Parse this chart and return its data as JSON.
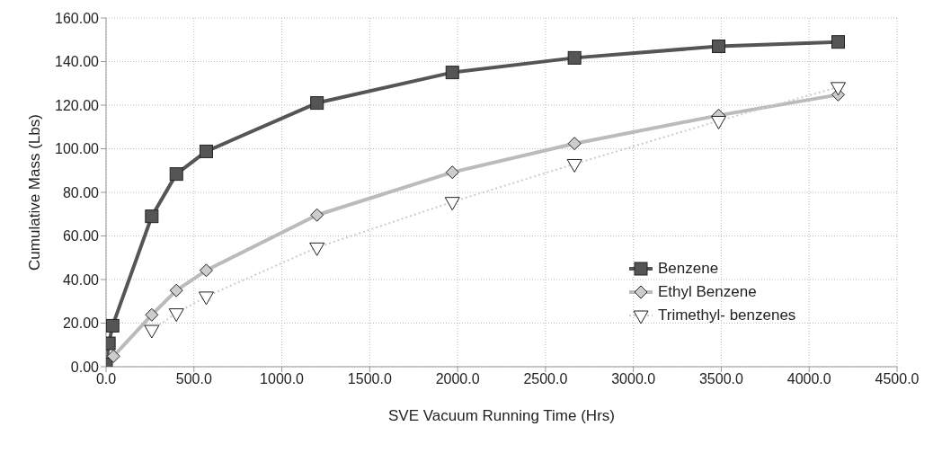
{
  "chart_data": {
    "type": "line",
    "xlabel": "SVE Vacuum Running Time (Hrs)",
    "ylabel": "Cumulative Mass (Lbs)",
    "xlim": [
      0,
      4500
    ],
    "xticks": [
      {
        "value": 0,
        "label": "0.0"
      },
      {
        "value": 500,
        "label": "500.0"
      },
      {
        "value": 1000,
        "label": "1000.0"
      },
      {
        "value": 1500,
        "label": "1500.0"
      },
      {
        "value": 2000,
        "label": "2000.0"
      },
      {
        "value": 2500,
        "label": "2500.0"
      },
      {
        "value": 3000,
        "label": "3000.0"
      },
      {
        "value": 3500,
        "label": "3500.0"
      },
      {
        "value": 4000,
        "label": "4000.0"
      },
      {
        "value": 4500,
        "label": "4500.0"
      }
    ],
    "ylim": [
      0,
      160
    ],
    "yticks": [
      {
        "value": 0,
        "label": "0.00"
      },
      {
        "value": 20,
        "label": "20.00"
      },
      {
        "value": 40,
        "label": "40.00"
      },
      {
        "value": 60,
        "label": "60.00"
      },
      {
        "value": 80,
        "label": "80.00"
      },
      {
        "value": 100,
        "label": "100.00"
      },
      {
        "value": 120,
        "label": "120.00"
      },
      {
        "value": 140,
        "label": "140.00"
      },
      {
        "value": 160,
        "label": "160.00"
      }
    ],
    "grid": true,
    "legend": "bottom right",
    "series": [
      {
        "name": "Benzene",
        "color": "#555555",
        "marker": "square",
        "line_style": "solid",
        "x": [
          0,
          16,
          37,
          260,
          400,
          570,
          1200,
          1970,
          2665,
          3485,
          4165
        ],
        "values": [
          1,
          10.7,
          18.8,
          69,
          88.4,
          98.8,
          121,
          135,
          141.7,
          147,
          149
        ]
      },
      {
        "name": "Ethyl  Benzene",
        "color": "#bbbbbb",
        "marker": "diamond",
        "line_style": "solid",
        "x": [
          42,
          260,
          400,
          570,
          1200,
          1970,
          2665,
          3485,
          4165
        ],
        "values": [
          4.8,
          23.8,
          35,
          44.2,
          69.6,
          89.2,
          102.4,
          115.3,
          124.8
        ]
      },
      {
        "name": "Trimethyl- benzenes",
        "color": "#cccccc",
        "marker": "triangle",
        "line_style": "dotted",
        "x": [
          260,
          400,
          570,
          1200,
          1970,
          2665,
          3485,
          4165
        ],
        "values": [
          16.9,
          24.5,
          32.2,
          54.7,
          75.6,
          93,
          112.8,
          128.3
        ]
      }
    ]
  }
}
